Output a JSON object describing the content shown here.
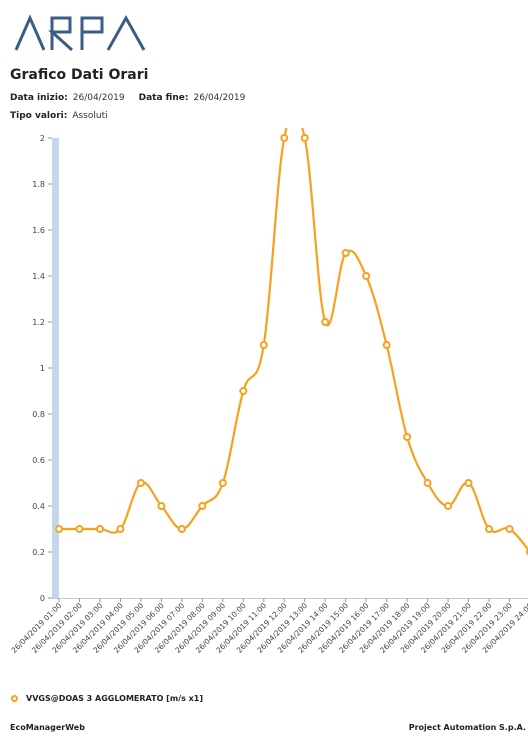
{
  "header": {
    "logo_text": "ARPA",
    "title": "Grafico Dati Orari",
    "start_label": "Data inizio:",
    "start_value": "26/04/2019",
    "end_label": "Data fine:",
    "end_value": "26/04/2019",
    "type_label": "Tipo valori:",
    "type_value": "Assoluti"
  },
  "colors": {
    "series": "#f7a11f",
    "axis_band": "#c5d6ea",
    "grid": "#e6e6e6",
    "logo": "#3a5d86"
  },
  "chart_data": {
    "type": "line",
    "title": "",
    "xlabel": "",
    "ylabel": "",
    "ylim": [
      0,
      2
    ],
    "yticks": [
      "0",
      "0.2",
      "0.4",
      "0.6",
      "0.8",
      "1",
      "1.2",
      "1.4",
      "1.6",
      "1.8",
      "2"
    ],
    "grid": false,
    "legend_position": "bottom-left",
    "x": [
      "26/04/2019 01:00",
      "26/04/2019 02:00",
      "26/04/2019 03:00",
      "26/04/2019 04:00",
      "26/04/2019 05:00",
      "26/04/2019 06:00",
      "26/04/2019 07:00",
      "26/04/2019 08:00",
      "26/04/2019 09:00",
      "26/04/2019 10:00",
      "26/04/2019 11:00",
      "26/04/2019 12:00",
      "26/04/2019 13:00",
      "26/04/2019 14:00",
      "26/04/2019 15:00",
      "26/04/2019 16:00",
      "26/04/2019 17:00",
      "26/04/2019 18:00",
      "26/04/2019 19:00",
      "26/04/2019 20:00",
      "26/04/2019 21:00",
      "26/04/2019 22:00",
      "26/04/2019 23:00",
      "26/04/2019 24:00"
    ],
    "series": [
      {
        "name": "VVGS@DOAS 3 AGGLOMERATO [m/s x1]",
        "values": [
          0.3,
          0.3,
          0.3,
          0.3,
          0.5,
          0.4,
          0.3,
          0.4,
          0.5,
          0.9,
          1.1,
          2.0,
          2.0,
          1.2,
          1.5,
          1.4,
          1.1,
          0.7,
          0.5,
          0.4,
          0.5,
          0.3,
          0.3,
          0.2
        ]
      }
    ]
  },
  "legend": {
    "label": "VVGS@DOAS 3 AGGLOMERATO [m/s x1]"
  },
  "footer": {
    "left": "EcoManagerWeb",
    "right": "Project Automation S.p.A."
  }
}
